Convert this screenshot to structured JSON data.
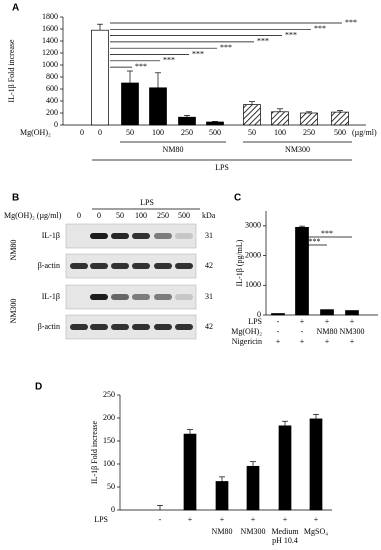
{
  "chart_data": [
    {
      "panel": "A",
      "type": "bar",
      "ylabel": "IL-1β Fold increase",
      "ylim": [
        0,
        1800
      ],
      "yticks": [
        0,
        200,
        400,
        600,
        800,
        1000,
        1200,
        1400,
        1600,
        1800
      ],
      "values": [
        0,
        1580,
        700,
        620,
        130,
        50,
        340,
        220,
        200,
        215
      ],
      "errors": [
        null,
        100,
        200,
        250,
        30,
        10,
        50,
        50,
        20,
        25
      ],
      "fills": [
        "#ffffff",
        "#ffffff",
        "#000000",
        "#000000",
        "#000000",
        "#000000",
        "hatch",
        "hatch",
        "hatch",
        "hatch"
      ],
      "rows": [
        {
          "label": "Mg(OH)₂",
          "values": [
            "0",
            "0",
            "50",
            "100",
            "250",
            "500",
            "50",
            "100",
            "250",
            "500"
          ]
        }
      ],
      "unit": "(µg/ml)",
      "groups": [
        "NM80",
        "NM300"
      ],
      "group_label": "LPS",
      "annotations": [
        "***",
        "***",
        "***",
        "***",
        "***",
        "***",
        "***",
        "***"
      ]
    },
    {
      "panel": "C",
      "type": "bar",
      "ylabel": "IL-1β (pg/mL)",
      "ylim": [
        0,
        3500
      ],
      "yticks": [
        0,
        1000,
        2000,
        3000
      ],
      "values": [
        50,
        2950,
        180,
        150
      ],
      "errors": [
        null,
        40,
        null,
        null
      ],
      "color": "#000000",
      "rows": [
        {
          "label": "LPS",
          "values": [
            "-",
            "+",
            "+",
            "+"
          ]
        },
        {
          "label": "Mg(OH)₂",
          "values": [
            "-",
            "-",
            "NM80",
            "NM300"
          ]
        },
        {
          "label": "Nigericin",
          "values": [
            "+",
            "+",
            "+",
            "+"
          ]
        }
      ],
      "annotations": [
        "***",
        "***"
      ]
    },
    {
      "panel": "D",
      "type": "bar",
      "ylabel": "IL-1β Fold increase",
      "ylim": [
        0,
        250
      ],
      "yticks": [
        0,
        50,
        100,
        150,
        200,
        250
      ],
      "values": [
        0,
        165,
        62,
        95,
        183,
        198
      ],
      "errors": [
        10,
        10,
        10,
        10,
        10,
        10
      ],
      "color": "#000000",
      "rows": [
        {
          "label": "LPS",
          "values": [
            "-",
            "+",
            "+",
            "+",
            "+",
            "+"
          ]
        }
      ],
      "categories": [
        null,
        null,
        "NM80",
        "NM300",
        [
          "Medium",
          "pH 10.4"
        ],
        "MgSO₄"
      ]
    }
  ],
  "blot": {
    "panel": "B",
    "title": "LPS",
    "row_label": "Mg(OH)₂ (µg/ml)",
    "lanes": [
      "0",
      "0",
      "50",
      "100",
      "250",
      "500"
    ],
    "unit": "kDa",
    "groups": [
      {
        "name": "NM80",
        "blots": [
          {
            "label": "IL-1β",
            "kda": 31
          },
          {
            "label": "β-actin",
            "kda": 42
          }
        ]
      },
      {
        "name": "NM300",
        "blots": [
          {
            "label": "IL-1β",
            "kda": 31
          },
          {
            "label": "β-actin",
            "kda": 42
          }
        ]
      }
    ]
  }
}
